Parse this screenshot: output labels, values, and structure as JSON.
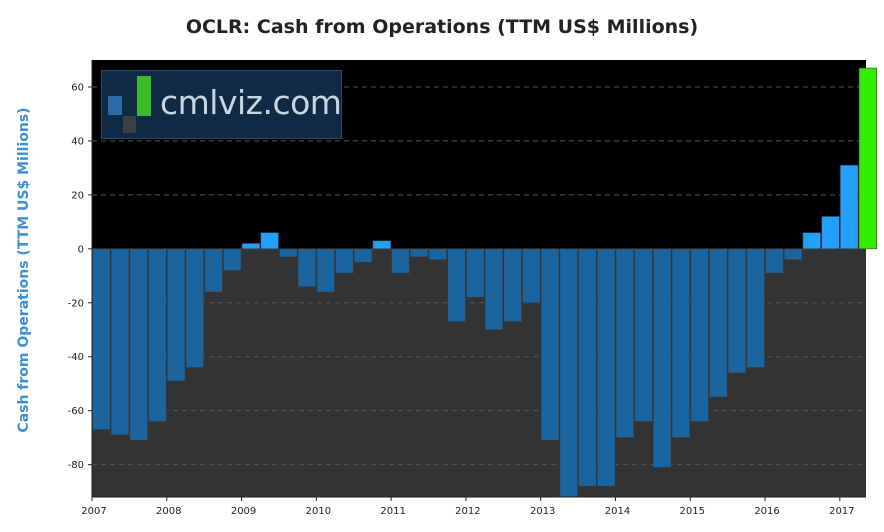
{
  "chart_data": {
    "type": "bar",
    "title": "OCLR: Cash from Operations (TTM US$ Millions)",
    "ylabel": "Cash from Operations (TTM US$ Millions)",
    "xlabel": "",
    "ylim": [
      -92,
      70
    ],
    "yticks": [
      -80,
      -60,
      -40,
      -20,
      0,
      20,
      40,
      60
    ],
    "xlim": [
      2007.0,
      2017.35
    ],
    "xticks": [
      "2007",
      "2008",
      "2009",
      "2010",
      "2011",
      "2012",
      "2013",
      "2014",
      "2015",
      "2016",
      "2017"
    ],
    "grid": "horizontal dashed",
    "colors": {
      "negative": "#1a64a0",
      "positive": "#22a0ff",
      "latest": "#33ee00",
      "plot_bg_above": "#000000",
      "plot_bg_below": "#333333"
    },
    "bars": [
      {
        "x": 2007.0,
        "value": -67
      },
      {
        "x": 2007.25,
        "value": -69
      },
      {
        "x": 2007.5,
        "value": -71
      },
      {
        "x": 2007.75,
        "value": -64
      },
      {
        "x": 2008.0,
        "value": -49
      },
      {
        "x": 2008.25,
        "value": -44
      },
      {
        "x": 2008.5,
        "value": -16
      },
      {
        "x": 2008.75,
        "value": -8
      },
      {
        "x": 2009.0,
        "value": 2
      },
      {
        "x": 2009.25,
        "value": 6
      },
      {
        "x": 2009.5,
        "value": -3
      },
      {
        "x": 2009.75,
        "value": -14
      },
      {
        "x": 2010.0,
        "value": -16
      },
      {
        "x": 2010.25,
        "value": -9
      },
      {
        "x": 2010.5,
        "value": -5
      },
      {
        "x": 2010.75,
        "value": 3
      },
      {
        "x": 2011.0,
        "value": -9
      },
      {
        "x": 2011.25,
        "value": -3
      },
      {
        "x": 2011.5,
        "value": -4
      },
      {
        "x": 2011.75,
        "value": -27
      },
      {
        "x": 2012.0,
        "value": -18
      },
      {
        "x": 2012.25,
        "value": -30
      },
      {
        "x": 2012.5,
        "value": -27
      },
      {
        "x": 2012.75,
        "value": -20
      },
      {
        "x": 2013.0,
        "value": -71
      },
      {
        "x": 2013.25,
        "value": -92
      },
      {
        "x": 2013.5,
        "value": -88
      },
      {
        "x": 2013.75,
        "value": -88
      },
      {
        "x": 2014.0,
        "value": -70
      },
      {
        "x": 2014.25,
        "value": -64
      },
      {
        "x": 2014.5,
        "value": -81
      },
      {
        "x": 2014.75,
        "value": -70
      },
      {
        "x": 2015.0,
        "value": -64
      },
      {
        "x": 2015.25,
        "value": -55
      },
      {
        "x": 2015.5,
        "value": -46
      },
      {
        "x": 2015.75,
        "value": -44
      },
      {
        "x": 2016.0,
        "value": -9
      },
      {
        "x": 2016.25,
        "value": -4
      },
      {
        "x": 2016.5,
        "value": 6
      },
      {
        "x": 2016.75,
        "value": 12
      },
      {
        "x": 2017.0,
        "value": 31
      },
      {
        "x": 2017.25,
        "value": 67
      }
    ]
  },
  "watermark": {
    "text": "cmlviz.com"
  }
}
